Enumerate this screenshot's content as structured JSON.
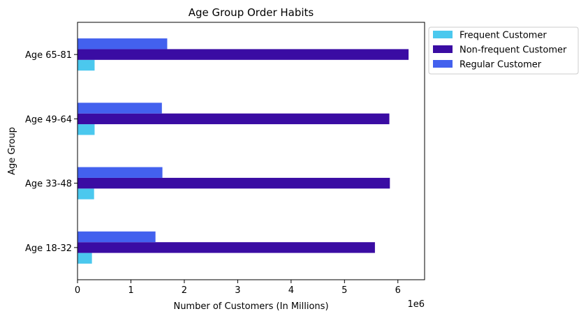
{
  "chart_data": {
    "type": "bar",
    "orientation": "horizontal",
    "title": "Age Group Order Habits",
    "xlabel": "Number of Customers (In Millions)",
    "ylabel": "Age Group",
    "x_offset_label": "1e6",
    "xlim": [
      0,
      6.5
    ],
    "x_ticks": [
      "0",
      "1",
      "2",
      "3",
      "4",
      "5",
      "6"
    ],
    "categories": [
      "Age 18-32",
      "Age 33-48",
      "Age 49-64",
      "Age 65-81"
    ],
    "series": [
      {
        "name": "Frequent Customer",
        "color": "#4bc8ee",
        "values": [
          0.27,
          0.31,
          0.32,
          0.32
        ]
      },
      {
        "name": "Non-frequent Customer",
        "color": "#3a0ca3",
        "values": [
          5.57,
          5.85,
          5.84,
          6.2
        ]
      },
      {
        "name": "Regular Customer",
        "color": "#4361ee",
        "values": [
          1.46,
          1.59,
          1.58,
          1.68
        ]
      }
    ],
    "legend_position": "outside-upper-right",
    "grid": false
  }
}
